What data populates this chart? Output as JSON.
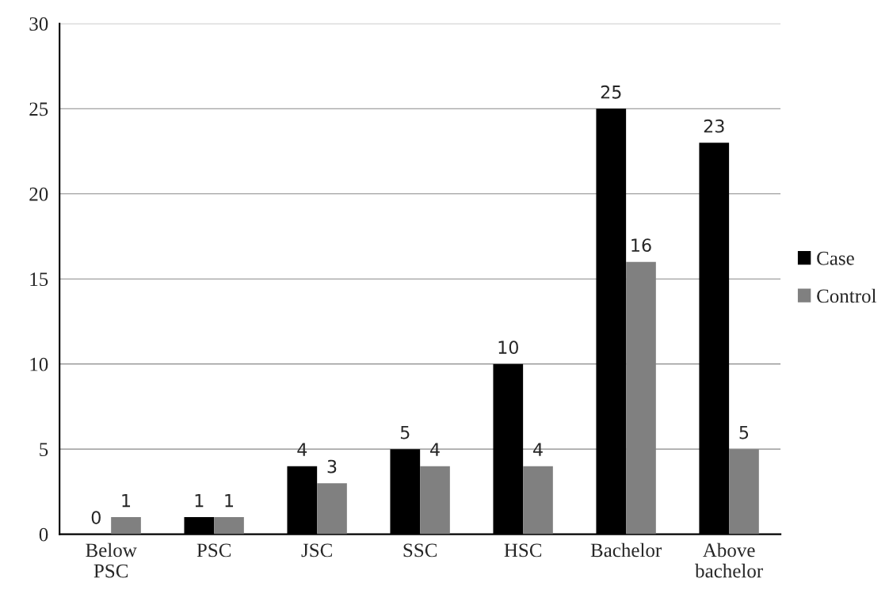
{
  "chart_data": {
    "type": "bar",
    "categories": [
      "Below\nPSC",
      "PSC",
      "JSC",
      "SSC",
      "HSC",
      "Bachelor",
      "Above\nbachelor"
    ],
    "series": [
      {
        "name": "Case",
        "color": "#000000",
        "values": [
          0,
          1,
          4,
          5,
          10,
          25,
          23
        ]
      },
      {
        "name": "Control",
        "color": "#808080",
        "values": [
          1,
          1,
          3,
          4,
          4,
          16,
          5
        ]
      }
    ],
    "ylim": [
      0,
      30
    ],
    "yticks": [
      0,
      5,
      10,
      15,
      20,
      25,
      30
    ],
    "grid": "y",
    "legend": "right",
    "data_labels": true
  }
}
